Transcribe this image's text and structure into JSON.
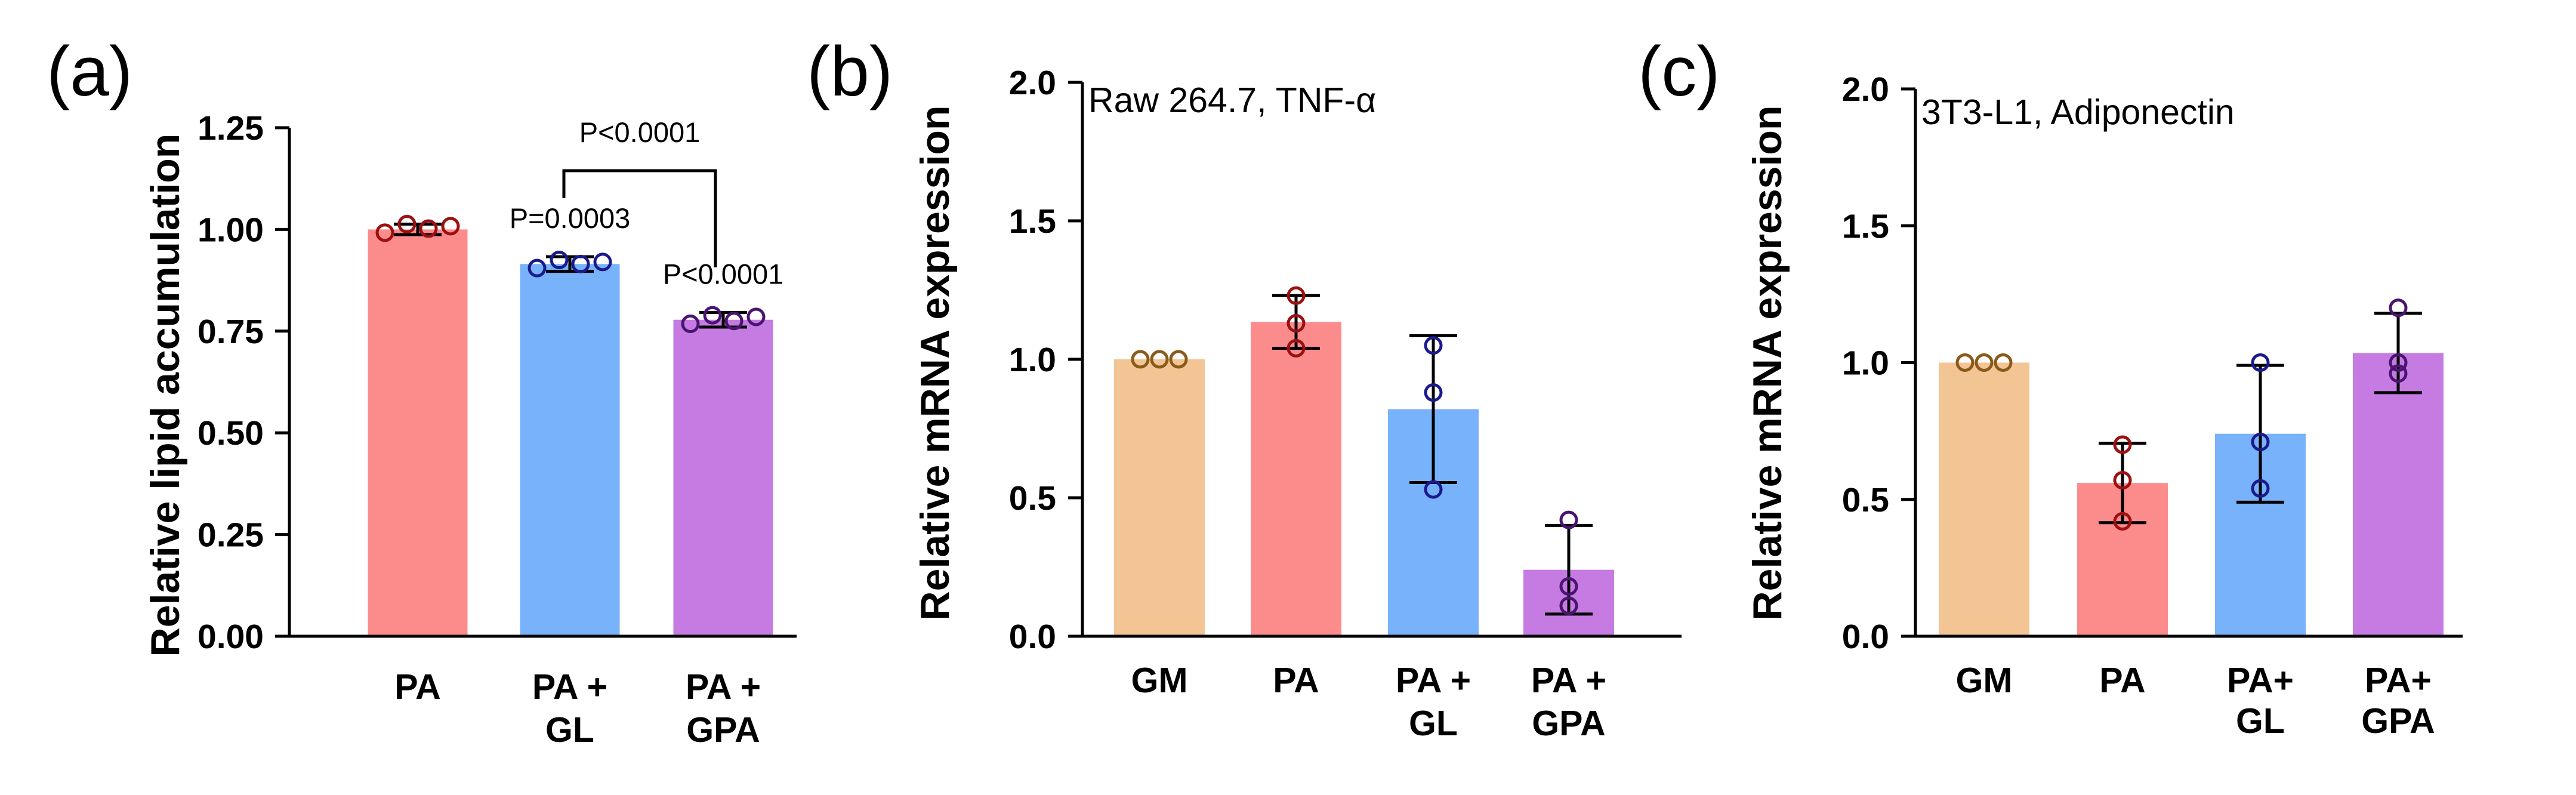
{
  "chart_data": [
    {
      "type": "bar",
      "panel_label": "(a)",
      "title": "",
      "xlabel": "",
      "ylabel": "Relative lipid accumulation",
      "ylim": [
        0,
        1.25
      ],
      "yticks": [
        "0.00",
        "0.25",
        "0.50",
        "0.75",
        "1.00",
        "1.25"
      ],
      "grid": false,
      "legend": "none",
      "categories": [
        [
          "PA"
        ],
        [
          "PA +",
          "GL"
        ],
        [
          "PA +",
          "GPA"
        ]
      ],
      "values": [
        1.0,
        0.915,
        0.778
      ],
      "errors": [
        0.013,
        0.018,
        0.018
      ],
      "points": [
        [
          0.992,
          1.013,
          1.002,
          1.008
        ],
        [
          0.905,
          0.925,
          0.915,
          0.92
        ],
        [
          0.768,
          0.789,
          0.775,
          0.785
        ]
      ],
      "colors": [
        "#FC8C8C",
        "#77B2FA",
        "#C57BE2"
      ],
      "point_colors": [
        "#9C1010",
        "#1A1A8C",
        "#4A1570"
      ],
      "annotations": [
        {
          "text": "P=0.0003",
          "bar": 1
        },
        {
          "text": "P<0.0001",
          "bar": 2
        },
        {
          "text": "P<0.0001",
          "bracket": [
            1,
            2
          ]
        }
      ]
    },
    {
      "type": "bar",
      "panel_label": "(b)",
      "title": "Raw 264.7, TNF-α",
      "xlabel": "",
      "ylabel": "Relative mRNA expression",
      "ylim": [
        0,
        2.0
      ],
      "yticks": [
        "0.0",
        "0.5",
        "1.0",
        "1.5",
        "2.0"
      ],
      "grid": false,
      "legend": "none",
      "categories": [
        [
          "GM"
        ],
        [
          "PA"
        ],
        [
          "PA +",
          "GL"
        ],
        [
          "PA +",
          "GPA"
        ]
      ],
      "values": [
        1.0,
        1.135,
        0.82,
        0.24
      ],
      "errors": [
        0.0,
        0.095,
        0.265,
        0.16
      ],
      "points": [
        [
          1.0,
          1.0,
          1.0
        ],
        [
          1.23,
          1.13,
          1.04
        ],
        [
          1.05,
          0.88,
          0.53
        ],
        [
          0.42,
          0.18,
          0.11
        ]
      ],
      "colors": [
        "#F3C595",
        "#FC8C8C",
        "#77B2FA",
        "#C57BE2"
      ],
      "point_colors": [
        "#8B5A1A",
        "#9C1010",
        "#1A1A8C",
        "#4A1570"
      ]
    },
    {
      "type": "bar",
      "panel_label": "(c)",
      "title": "3T3-L1, Adiponectin",
      "xlabel": "",
      "ylabel": "Relative mRNA expression",
      "ylim": [
        0,
        2.0
      ],
      "yticks": [
        "0.0",
        "0.5",
        "1.0",
        "1.5",
        "2.0"
      ],
      "grid": false,
      "legend": "none",
      "categories": [
        [
          "GM"
        ],
        [
          "PA"
        ],
        [
          "PA+",
          "GL"
        ],
        [
          "PA+",
          "GPA"
        ]
      ],
      "values": [
        1.0,
        0.56,
        0.74,
        1.035
      ],
      "errors": [
        0.0,
        0.145,
        0.25,
        0.145
      ],
      "points": [
        [
          1.0,
          1.0,
          1.0
        ],
        [
          0.7,
          0.57,
          0.42
        ],
        [
          1.0,
          0.71,
          0.54
        ],
        [
          1.2,
          1.0,
          0.96
        ]
      ],
      "colors": [
        "#F3C595",
        "#FC8C8C",
        "#77B2FA",
        "#C57BE2"
      ],
      "point_colors": [
        "#8B5A1A",
        "#9C1010",
        "#1A1A8C",
        "#4A1570"
      ]
    }
  ]
}
